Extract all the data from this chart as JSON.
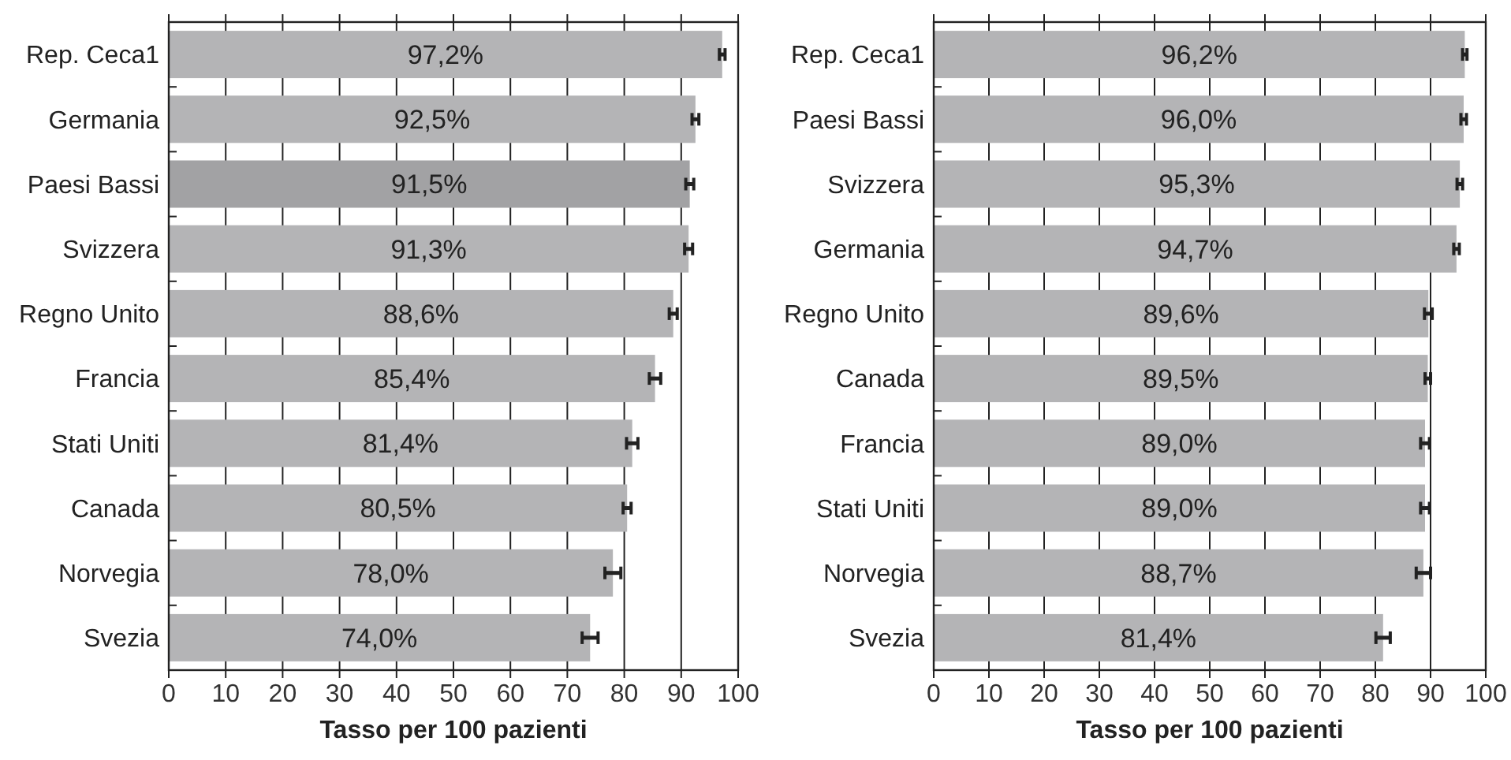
{
  "chart_data": [
    {
      "type": "bar",
      "orientation": "horizontal",
      "categories": [
        "Rep. Ceca1",
        "Germania",
        "Paesi Bassi",
        "Svizzera",
        "Regno Unito",
        "Francia",
        "Stati Uniti",
        "Canada",
        "Norvegia",
        "Svezia"
      ],
      "values": [
        97.2,
        92.5,
        91.5,
        91.3,
        88.6,
        85.4,
        81.4,
        80.5,
        78.0,
        74.0
      ],
      "value_labels": [
        "97,2%",
        "92,5%",
        "91,5%",
        "91,3%",
        "88,6%",
        "85,4%",
        "81,4%",
        "80,5%",
        "78,0%",
        "74,0%"
      ],
      "errors": [
        0.5,
        0.6,
        0.7,
        0.7,
        0.7,
        1.0,
        1.0,
        0.7,
        1.4,
        1.4
      ],
      "colors": [
        "#b4b4b6",
        "#b4b4b6",
        "#a2a2a4",
        "#b4b4b6",
        "#b4b4b6",
        "#b4b4b6",
        "#b4b4b6",
        "#b4b4b6",
        "#b4b4b6",
        "#b4b4b6"
      ],
      "xlim": [
        0,
        100
      ],
      "xticks": [
        0,
        10,
        20,
        30,
        40,
        50,
        60,
        70,
        80,
        90,
        100
      ],
      "xlabel": "Tasso per 100 pazienti",
      "grid": "x"
    },
    {
      "type": "bar",
      "orientation": "horizontal",
      "categories": [
        "Rep. Ceca1",
        "Paesi Bassi",
        "Svizzera",
        "Germania",
        "Regno Unito",
        "Canada",
        "Francia",
        "Stati Uniti",
        "Norvegia",
        "Svezia"
      ],
      "values": [
        96.2,
        96.0,
        95.3,
        94.7,
        89.6,
        89.5,
        89.0,
        89.0,
        88.7,
        81.4
      ],
      "value_labels": [
        "96,2%",
        "96,0%",
        "95,3%",
        "94,7%",
        "89,6%",
        "89,5%",
        "89,0%",
        "89,0%",
        "88,7%",
        "81,4%"
      ],
      "errors": [
        0.4,
        0.5,
        0.5,
        0.5,
        0.7,
        0.5,
        0.8,
        0.8,
        1.3,
        1.3
      ],
      "colors": [
        "#b4b4b6",
        "#b4b4b6",
        "#b4b4b6",
        "#b4b4b6",
        "#b4b4b6",
        "#b4b4b6",
        "#b4b4b6",
        "#b4b4b6",
        "#b4b4b6",
        "#b4b4b6"
      ],
      "xlim": [
        0,
        100
      ],
      "xticks": [
        0,
        10,
        20,
        30,
        40,
        50,
        60,
        70,
        80,
        90,
        100
      ],
      "xlabel": "Tasso per 100 pazienti",
      "grid": "x"
    }
  ]
}
